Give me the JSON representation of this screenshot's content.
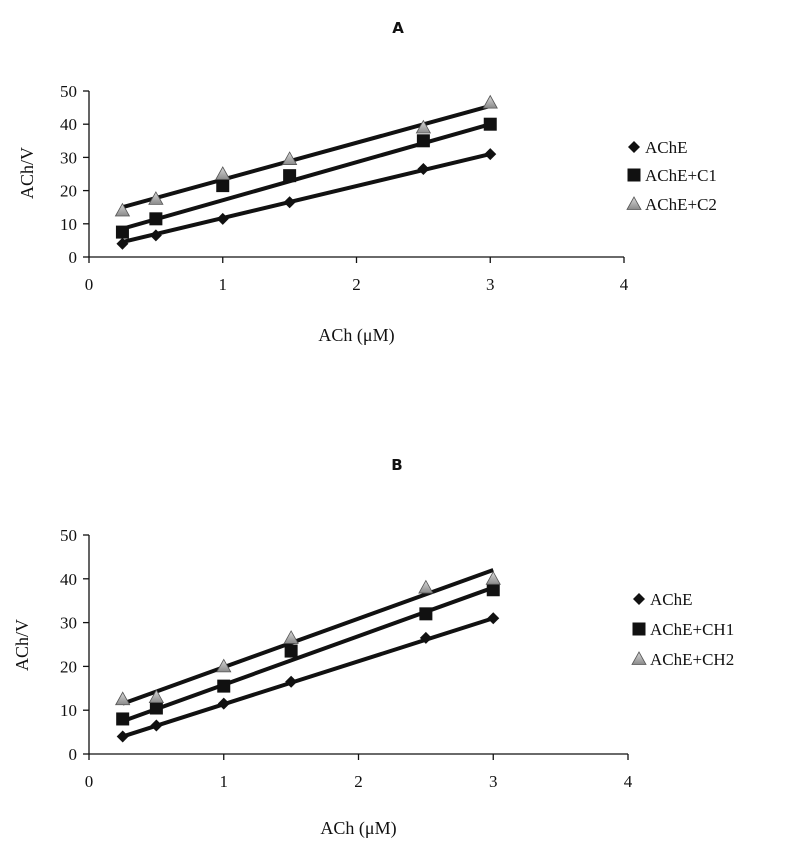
{
  "chart_data": [
    {
      "type": "scatter",
      "title": "A",
      "xlabel": "ACh (μM)",
      "ylabel": "ACh/V",
      "xlim": [
        0,
        4
      ],
      "ylim": [
        0,
        50
      ],
      "x_ticks": [
        "0",
        "1",
        "2",
        "3",
        "4"
      ],
      "y_ticks": [
        "0",
        "10",
        "20",
        "30",
        "40",
        "50"
      ],
      "legend_position": "right",
      "series": [
        {
          "name": "AChE",
          "marker": "diamond",
          "points": [
            [
              0.25,
              4
            ],
            [
              0.5,
              6.5
            ],
            [
              1,
              11.5
            ],
            [
              1.5,
              16.5
            ],
            [
              2.5,
              26.5
            ],
            [
              3,
              31
            ]
          ],
          "fit": [
            [
              0.25,
              4.5
            ],
            [
              3,
              31
            ]
          ]
        },
        {
          "name": "AChE+C1",
          "marker": "square",
          "points": [
            [
              0.25,
              7.5
            ],
            [
              0.5,
              11.5
            ],
            [
              1,
              21.5
            ],
            [
              1.5,
              24.5
            ],
            [
              2.5,
              35
            ],
            [
              3,
              40
            ]
          ],
          "fit": [
            [
              0.25,
              8.5
            ],
            [
              3,
              40
            ]
          ]
        },
        {
          "name": "AChE+C2",
          "marker": "triangle",
          "points": [
            [
              0.25,
              14
            ],
            [
              0.5,
              17.5
            ],
            [
              1,
              25
            ],
            [
              1.5,
              29.5
            ],
            [
              2.5,
              39
            ],
            [
              3,
              46.5
            ]
          ],
          "fit": [
            [
              0.25,
              15
            ],
            [
              3,
              45.5
            ]
          ]
        }
      ]
    },
    {
      "type": "scatter",
      "title": "B",
      "xlabel": "ACh (μM)",
      "ylabel": "ACh/V",
      "xlim": [
        0,
        4
      ],
      "ylim": [
        0,
        50
      ],
      "x_ticks": [
        "0",
        "1",
        "2",
        "3",
        "4"
      ],
      "y_ticks": [
        "0",
        "10",
        "20",
        "30",
        "40",
        "50"
      ],
      "legend_position": "right",
      "series": [
        {
          "name": "AChE",
          "marker": "diamond",
          "points": [
            [
              0.25,
              4
            ],
            [
              0.5,
              6.5
            ],
            [
              1,
              11.5
            ],
            [
              1.5,
              16.5
            ],
            [
              2.5,
              26.5
            ],
            [
              3,
              31
            ]
          ],
          "fit": [
            [
              0.25,
              4
            ],
            [
              3,
              31
            ]
          ]
        },
        {
          "name": "AChE+CH1",
          "marker": "square",
          "points": [
            [
              0.25,
              8
            ],
            [
              0.5,
              10.5
            ],
            [
              1,
              15.5
            ],
            [
              1.5,
              23.5
            ],
            [
              2.5,
              32
            ],
            [
              3,
              37.5
            ]
          ],
          "fit": [
            [
              0.25,
              7.5
            ],
            [
              3,
              38
            ]
          ]
        },
        {
          "name": "AChE+CH2",
          "marker": "triangle",
          "points": [
            [
              0.25,
              12.5
            ],
            [
              0.5,
              13
            ],
            [
              1,
              20
            ],
            [
              1.5,
              26.5
            ],
            [
              2.5,
              38
            ],
            [
              3,
              40
            ]
          ],
          "fit": [
            [
              0.25,
              11.5
            ],
            [
              3,
              42
            ]
          ]
        }
      ]
    }
  ]
}
